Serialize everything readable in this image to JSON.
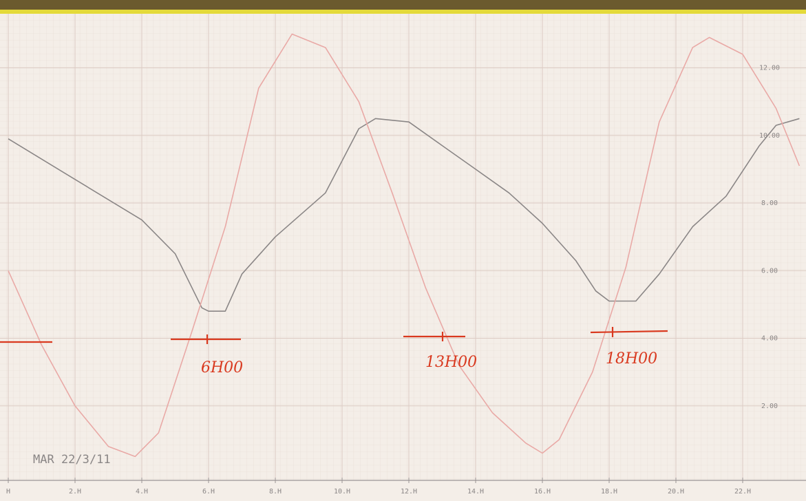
{
  "chart_data": {
    "type": "line",
    "xlim": [
      0,
      23.9
    ],
    "ylim": [
      0,
      13.6
    ],
    "xticks": [
      {
        "value": 0,
        "label": "H"
      },
      {
        "value": 2,
        "label": "2.H"
      },
      {
        "value": 4,
        "label": "4.H"
      },
      {
        "value": 6,
        "label": "6.H"
      },
      {
        "value": 8,
        "label": "8.H"
      },
      {
        "value": 10,
        "label": "10.H"
      },
      {
        "value": 12,
        "label": "12.H"
      },
      {
        "value": 14,
        "label": "14.H"
      },
      {
        "value": 16,
        "label": "16.H"
      },
      {
        "value": 18,
        "label": "18.H"
      },
      {
        "value": 20,
        "label": "20.H"
      },
      {
        "value": 22,
        "label": "22.H"
      }
    ],
    "yticks": [
      {
        "value": 2,
        "label": "2.00"
      },
      {
        "value": 4,
        "label": "4.00"
      },
      {
        "value": 6,
        "label": "6.00"
      },
      {
        "value": 8,
        "label": "8.00"
      },
      {
        "value": 10,
        "label": "10.00"
      },
      {
        "value": 12,
        "label": "12.00"
      }
    ],
    "grid": true,
    "series": [
      {
        "color": "#8a8686",
        "x": [
          0,
          2,
          4,
          5,
          5.8,
          6,
          6.5,
          7,
          8,
          9.5,
          10.5,
          11,
          12,
          13,
          14,
          15,
          16,
          17,
          17.6,
          18,
          18.8,
          19.5,
          20.5,
          21.5,
          22.5,
          23,
          23.7
        ],
        "values": [
          9.9,
          8.7,
          7.5,
          6.5,
          4.9,
          4.8,
          4.8,
          5.9,
          7.0,
          8.3,
          10.2,
          10.5,
          10.4,
          9.7,
          9.0,
          8.3,
          7.4,
          6.3,
          5.4,
          5.1,
          5.1,
          5.9,
          7.3,
          8.2,
          9.7,
          10.3,
          10.5
        ]
      },
      {
        "color": "#e9a9a6",
        "x": [
          0,
          1,
          2,
          3,
          3.8,
          4.5,
          5.5,
          6.5,
          7.5,
          8.5,
          9.5,
          10.5,
          11.5,
          12.5,
          13.5,
          14.5,
          15.5,
          16,
          16.5,
          17.5,
          18.5,
          19.5,
          20.5,
          21,
          22,
          23,
          23.7
        ],
        "values": [
          6.0,
          3.8,
          2.0,
          0.8,
          0.5,
          1.2,
          4.2,
          7.3,
          11.4,
          13.0,
          12.6,
          11.0,
          8.3,
          5.5,
          3.2,
          1.8,
          0.9,
          0.6,
          1.0,
          3.0,
          6.1,
          10.4,
          12.6,
          12.9,
          12.4,
          10.8,
          9.1
        ]
      }
    ],
    "annotations": [
      "6H00",
      "13H00",
      "18H00",
      "MAR 22/3/11"
    ]
  }
}
